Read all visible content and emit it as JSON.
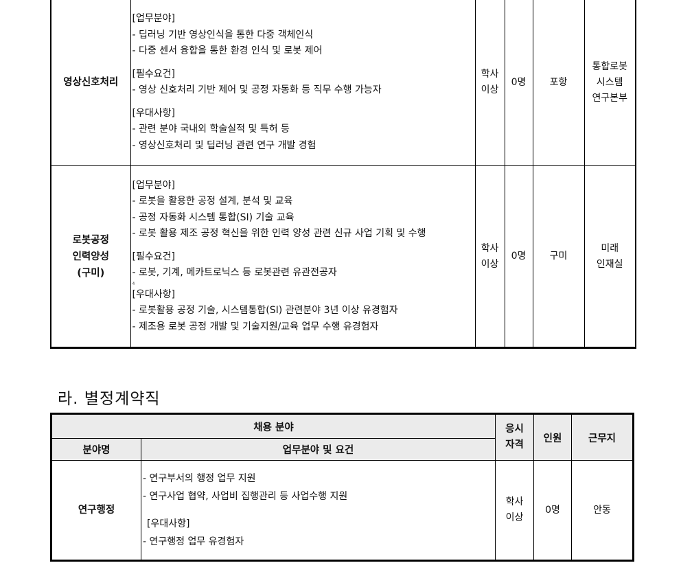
{
  "table1": {
    "rows": [
      {
        "name_lines": [
          "영상신호처리"
        ],
        "groups": [
          {
            "title": "[업무분야]",
            "items": [
              "- 딥러닝 기반 영상인식을 통한 다중 객체인식",
              "- 다중 센서 융합을 통한 환경 인식 및 로봇 제어"
            ]
          },
          {
            "title": "[필수요건]",
            "items": [
              "- 영상 신호처리 기반 제어 및 공정 자동화 등 직무 수행 가능자"
            ]
          },
          {
            "title": "[우대사항]",
            "items": [
              "- 관련 분야 국내외 학술실적 및 특허 등",
              "- 영상신호처리 및 딥러닝 관련 연구 개발 경험"
            ]
          }
        ],
        "qualification": [
          "학사",
          "이상"
        ],
        "headcount": "0명",
        "location": "포항",
        "department": [
          "통합로봇",
          "시스템",
          "연구본부"
        ]
      },
      {
        "name_lines": [
          "로봇공정",
          "인력양성",
          "(구미)"
        ],
        "groups": [
          {
            "title": "[업무분야]",
            "items": [
              "- 로봇을 활용한 공정 설계, 분석 및 교육",
              "- 공정 자동화 시스템 통합(SI) 기술 교육",
              "- 로봇 활용 제조 공정 혁신을 위한 인력 양성 관련 신규 사업 기획 및 수행"
            ]
          },
          {
            "title": "[필수요건]",
            "items": [
              "- 로봇, 기계, 메카트로닉스 등 로봇관련 유관전공자"
            ]
          },
          {
            "title": "[우대사항]",
            "items": [
              "- 로봇활용 공정 기술, 시스템통합(SI) 관련분야 3년 이상 유경험자",
              "- 제조용 로봇 공정 개발 및 기술지원/교육 업무 수행 유경험자"
            ]
          }
        ],
        "stray_mark": "4",
        "qualification": [
          "학사",
          "이상"
        ],
        "headcount": "0명",
        "location": "구미",
        "department": [
          "미래",
          "인재실"
        ]
      }
    ]
  },
  "section2": {
    "heading": "라. 별정계약직",
    "headers": {
      "field": "채용 분야",
      "field_name": "분야명",
      "duties": "업무분야 및 요건",
      "qualification": [
        "응시",
        "자격"
      ],
      "headcount": "인원",
      "location": "근무지"
    },
    "row": {
      "name": "연구행정",
      "items": [
        "- 연구부서의 행정 업무 지원",
        "- 연구사업 협약, 사업비 집행관리 등 사업수행 지원"
      ],
      "pref_title": "[우대사항]",
      "pref_items": [
        "- 연구행정 업무 유경험자"
      ],
      "qualification": [
        "학사",
        "이상"
      ],
      "headcount": "0명",
      "location": "안동"
    }
  }
}
